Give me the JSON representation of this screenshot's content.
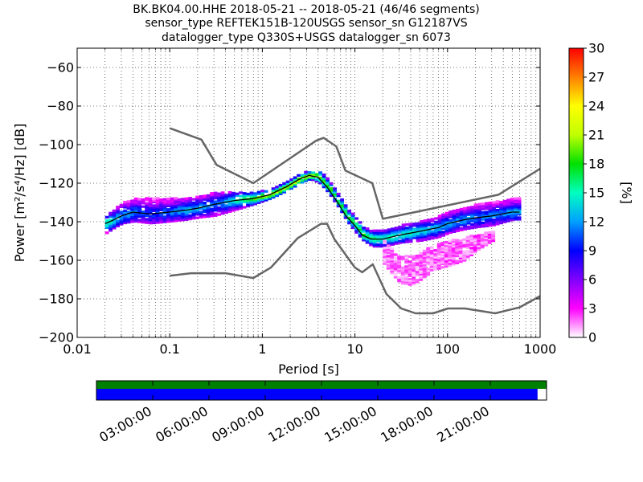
{
  "chart_data": {
    "type": "heatmap",
    "title_lines": [
      "BK.BK04.00.HHE   2018-05-21 -- 2018-05-21  (46/46 segments)",
      "sensor_type REFTEK151B-120USGS sensor_sn G12187VS",
      "datalogger_type Q330S+USGS datalogger_sn 6073"
    ],
    "xlabel": "Period [s]",
    "ylabel": "Power [m²/s⁴/Hz] [dB]",
    "xscale": "log",
    "xlim": [
      0.01,
      1000
    ],
    "ylim": [
      -200,
      -50
    ],
    "xticks": [
      {
        "value": 0.01,
        "label": "0.01"
      },
      {
        "value": 0.1,
        "label": "0.1"
      },
      {
        "value": 1,
        "label": "1"
      },
      {
        "value": 10,
        "label": "10"
      },
      {
        "value": 100,
        "label": "100"
      },
      {
        "value": 1000,
        "label": "1000"
      }
    ],
    "yticks": [
      {
        "value": -60,
        "label": "−60"
      },
      {
        "value": -80,
        "label": "−80"
      },
      {
        "value": -100,
        "label": "−100"
      },
      {
        "value": -120,
        "label": "−120"
      },
      {
        "value": -140,
        "label": "−140"
      },
      {
        "value": -160,
        "label": "−160"
      },
      {
        "value": -180,
        "label": "−180"
      },
      {
        "value": -200,
        "label": "−200"
      }
    ],
    "colorbar": {
      "label": "[%]",
      "min": 0,
      "max": 30,
      "ticks": [
        "0",
        "3",
        "6",
        "9",
        "12",
        "15",
        "18",
        "21",
        "24",
        "27",
        "30"
      ],
      "colors": [
        "#ffffff",
        "#ff00ff",
        "#8000ff",
        "#0000ff",
        "#00a0ff",
        "#00ffc0",
        "#00e000",
        "#c0ff00",
        "#ffff00",
        "#ff8000",
        "#ff0000"
      ]
    },
    "nhnm": {
      "name": "NHNM",
      "x": [
        0.1,
        0.22,
        0.32,
        0.8,
        3.8,
        4.6,
        6.3,
        7.9,
        15.4,
        20,
        354.8,
        1000
      ],
      "y": [
        -91.5,
        -97.4,
        -110.5,
        -120,
        -98,
        -96.5,
        -101,
        -113.5,
        -120,
        -138.5,
        -126,
        -112.5
      ]
    },
    "nlnm": {
      "name": "NLNM",
      "x": [
        0.1,
        0.17,
        0.4,
        0.8,
        1.24,
        2.4,
        4.3,
        5,
        6,
        10,
        12,
        15.6,
        21.9,
        31.6,
        45,
        70,
        101,
        154,
        328,
        600,
        1000
      ],
      "y": [
        -168,
        -166.7,
        -166.7,
        -169.2,
        -163.7,
        -148.6,
        -141.1,
        -141.1,
        -149,
        -163.8,
        -166.2,
        -162.1,
        -177.5,
        -185,
        -187.5,
        -187.5,
        -185,
        -185,
        -187.5,
        -184.4,
        -178.6
      ]
    },
    "mode_curve": {
      "x": [
        0.02,
        0.025,
        0.03,
        0.04,
        0.06,
        0.1,
        0.15,
        0.2,
        0.3,
        0.5,
        0.8,
        1.2,
        1.8,
        2.5,
        3.2,
        4,
        5,
        6.5,
        8,
        10,
        12,
        15,
        20,
        30,
        50,
        80,
        100,
        150,
        200,
        300,
        500,
        600
      ],
      "y": [
        -141,
        -139,
        -137,
        -135,
        -136,
        -135,
        -134,
        -133,
        -131,
        -129,
        -128,
        -126,
        -122,
        -118,
        -116,
        -117,
        -122,
        -130,
        -137,
        -142,
        -147,
        -149,
        -149,
        -147,
        -145,
        -143,
        -141,
        -139,
        -138,
        -137,
        -135,
        -135
      ]
    },
    "density_main": {
      "x": [
        0.02,
        0.025,
        0.03,
        0.04,
        0.06,
        0.1,
        0.15,
        0.2,
        0.3,
        0.5,
        0.8,
        1.2,
        1.8,
        2.5,
        3.2,
        4,
        5,
        6.5,
        8,
        10,
        12,
        15,
        20,
        30,
        50,
        80,
        100,
        150,
        200,
        300,
        500,
        600
      ],
      "y_low": [
        -146,
        -143,
        -141,
        -140,
        -141,
        -140,
        -139,
        -138,
        -137,
        -134,
        -131,
        -128,
        -124,
        -120,
        -118,
        -120,
        -125,
        -133,
        -140,
        -146,
        -150,
        -153,
        -153,
        -151,
        -150,
        -148,
        -146,
        -144,
        -143,
        -142,
        -139,
        -139
      ],
      "y_high": [
        -137,
        -133,
        -130,
        -128,
        -128,
        -128,
        -128,
        -127,
        -125,
        -125,
        -125,
        -123,
        -119,
        -115,
        -114,
        -114,
        -118,
        -126,
        -133,
        -138,
        -143,
        -145,
        -144,
        -142,
        -140,
        -137,
        -135,
        -133,
        -131,
        -130,
        -128,
        -128
      ]
    },
    "density_tail": {
      "x": [
        20,
        25,
        30,
        40,
        50,
        70,
        100,
        150,
        200,
        300
      ],
      "y_low": [
        -162,
        -168,
        -172,
        -173,
        -170,
        -165,
        -163,
        -160,
        -155,
        -150
      ],
      "y_high": [
        -150,
        -155,
        -158,
        -158,
        -156,
        -152,
        -150,
        -148,
        -147,
        -145
      ]
    }
  },
  "timeline": {
    "coverage_fraction": 0.98,
    "labels": [
      "03:00:00",
      "06:00:00",
      "09:00:00",
      "12:00:00",
      "15:00:00",
      "18:00:00",
      "21:00:00"
    ],
    "colors": {
      "top": "#008000",
      "bottom": "#0000ff"
    }
  }
}
